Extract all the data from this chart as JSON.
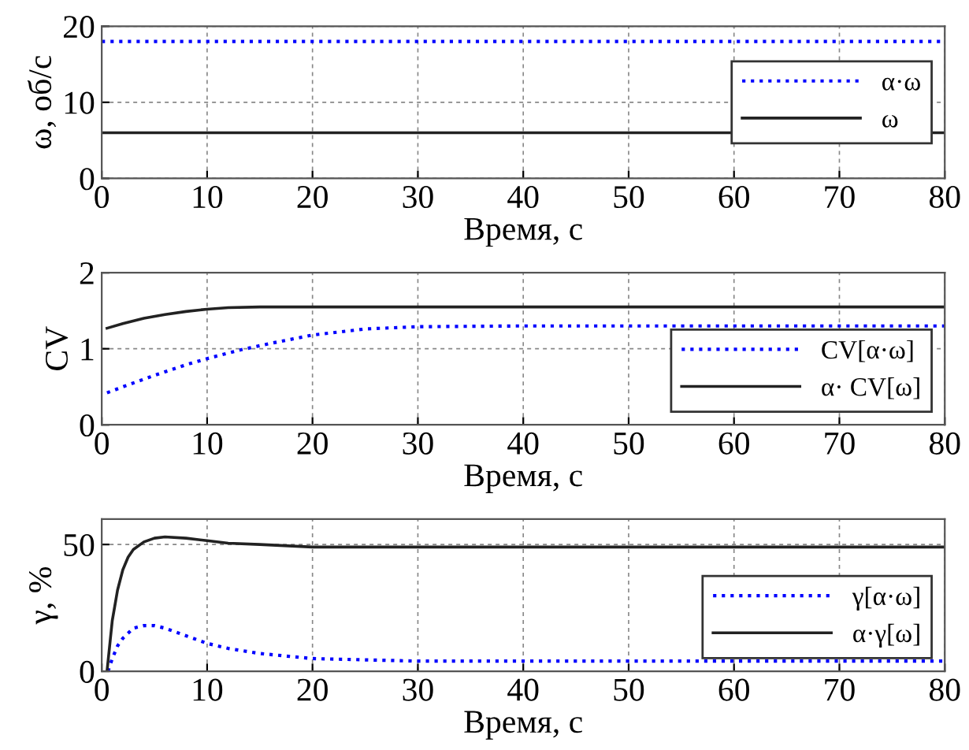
{
  "chart_data": [
    {
      "type": "line",
      "xlabel": "Время, с",
      "ylabel": "ω, об/с",
      "xlim": [
        0,
        80
      ],
      "xticks": [
        0,
        10,
        20,
        30,
        40,
        50,
        60,
        70,
        80
      ],
      "ylim": [
        0,
        20
      ],
      "yticks": [
        0,
        10,
        20
      ],
      "grid": true,
      "legend": "right",
      "series": [
        {
          "name": "α·ω",
          "color": "#0000ff",
          "line_style": "dotted",
          "x": [
            0,
            80
          ],
          "values": [
            18,
            18
          ]
        },
        {
          "name": "ω",
          "color": "#222222",
          "line_style": "solid",
          "x": [
            0,
            80
          ],
          "values": [
            6,
            6
          ]
        }
      ]
    },
    {
      "type": "line",
      "xlabel": "Время, с",
      "ylabel": "CV",
      "xlim": [
        0,
        80
      ],
      "xticks": [
        0,
        10,
        20,
        30,
        40,
        50,
        60,
        70,
        80
      ],
      "ylim": [
        0,
        2
      ],
      "yticks": [
        0,
        1,
        2
      ],
      "grid": true,
      "legend": "bottom right",
      "series": [
        {
          "name": "CV[α·ω]",
          "color": "#0000ff",
          "line_style": "dotted",
          "x": [
            0.5,
            2,
            5,
            8,
            10,
            13,
            16,
            20,
            25,
            30,
            40,
            50,
            60,
            70,
            80
          ],
          "values": [
            0.42,
            0.5,
            0.65,
            0.79,
            0.87,
            0.98,
            1.07,
            1.18,
            1.26,
            1.29,
            1.3,
            1.3,
            1.3,
            1.3,
            1.3
          ]
        },
        {
          "name": "α· CV[ω]",
          "color": "#222222",
          "line_style": "solid",
          "x": [
            0.5,
            2,
            4,
            6,
            8,
            10,
            12,
            15,
            20,
            30,
            40,
            50,
            60,
            70,
            80
          ],
          "values": [
            1.27,
            1.33,
            1.4,
            1.45,
            1.49,
            1.52,
            1.54,
            1.55,
            1.55,
            1.55,
            1.55,
            1.55,
            1.55,
            1.55,
            1.55
          ]
        }
      ]
    },
    {
      "type": "line",
      "xlabel": "Время, с",
      "ylabel": "γ, %",
      "xlim": [
        0,
        80
      ],
      "xticks": [
        0,
        10,
        20,
        30,
        40,
        50,
        60,
        70,
        80
      ],
      "ylim": [
        0,
        60
      ],
      "yticks": [
        0,
        50
      ],
      "grid": true,
      "legend": "bottom right",
      "series": [
        {
          "name": "γ[α·ω]",
          "color": "#0000ff",
          "line_style": "dotted",
          "x": [
            0.6,
            1,
            1.5,
            2,
            2.5,
            3,
            4,
            5,
            6,
            8,
            10,
            12,
            15,
            20,
            25,
            30,
            40,
            50,
            60,
            70,
            80
          ],
          "values": [
            0,
            5,
            10,
            13,
            15,
            17,
            18,
            18,
            17,
            14,
            11,
            9,
            7,
            5,
            4.5,
            4,
            4,
            4,
            4,
            4,
            4
          ]
        },
        {
          "name": "α·γ[ω]",
          "color": "#222222",
          "line_style": "solid",
          "x": [
            0.5,
            0.8,
            1,
            1.5,
            2,
            2.5,
            3,
            4,
            5,
            6,
            8,
            10,
            12,
            15,
            20,
            30,
            40,
            50,
            60,
            70,
            80
          ],
          "values": [
            0,
            12,
            20,
            32,
            40,
            45,
            48,
            51,
            52.5,
            53,
            52.5,
            51.5,
            50.5,
            50,
            49,
            49,
            49,
            49,
            49,
            49,
            49
          ]
        }
      ]
    }
  ]
}
